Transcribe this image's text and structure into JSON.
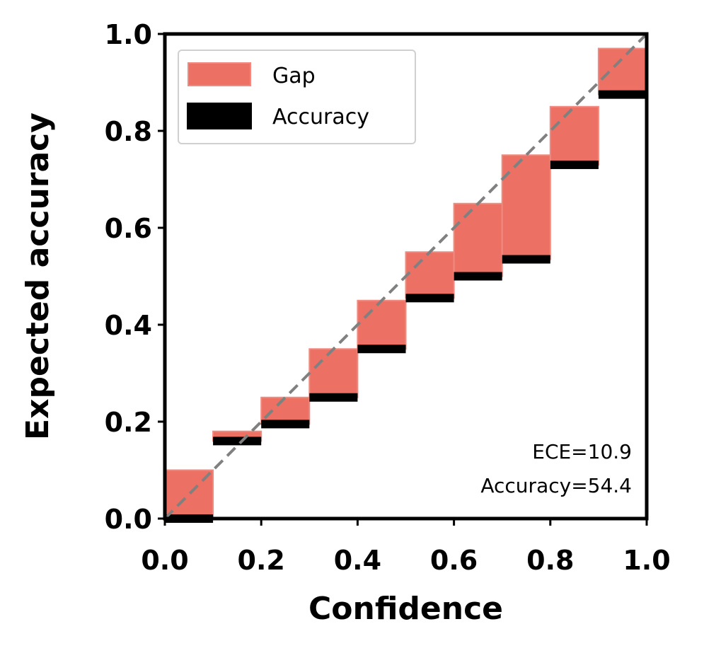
{
  "chart_data": {
    "type": "bar",
    "xlabel": "Confidence",
    "ylabel": "Expected accuracy",
    "xlim": [
      0.0,
      1.0
    ],
    "ylim": [
      0.0,
      1.0
    ],
    "xticks": [
      "0.0",
      "0.2",
      "0.4",
      "0.6",
      "0.8",
      "1.0"
    ],
    "yticks": [
      "0.0",
      "0.2",
      "0.4",
      "0.6",
      "0.8",
      "1.0"
    ],
    "bin_width": 0.1,
    "bins": [
      {
        "x": 0.0,
        "expected": 0.1,
        "accuracy": 0.0
      },
      {
        "x": 0.1,
        "expected": 0.18,
        "accuracy": 0.16
      },
      {
        "x": 0.2,
        "expected": 0.25,
        "accuracy": 0.195
      },
      {
        "x": 0.3,
        "expected": 0.35,
        "accuracy": 0.25
      },
      {
        "x": 0.4,
        "expected": 0.45,
        "accuracy": 0.35
      },
      {
        "x": 0.5,
        "expected": 0.55,
        "accuracy": 0.455
      },
      {
        "x": 0.6,
        "expected": 0.65,
        "accuracy": 0.5
      },
      {
        "x": 0.7,
        "expected": 0.75,
        "accuracy": 0.535
      },
      {
        "x": 0.8,
        "expected": 0.85,
        "accuracy": 0.73
      },
      {
        "x": 0.9,
        "expected": 0.97,
        "accuracy": 0.875
      }
    ],
    "legend": {
      "position": "top-left",
      "entries": [
        "Gap",
        "Accuracy"
      ]
    },
    "annotations": [
      "ECE=10.9",
      "Accuracy=54.4"
    ],
    "diagonal": true,
    "grid": false,
    "colors": {
      "gap": "#ec7063",
      "accuracy": "#000000",
      "diagonal": "#808080"
    }
  }
}
